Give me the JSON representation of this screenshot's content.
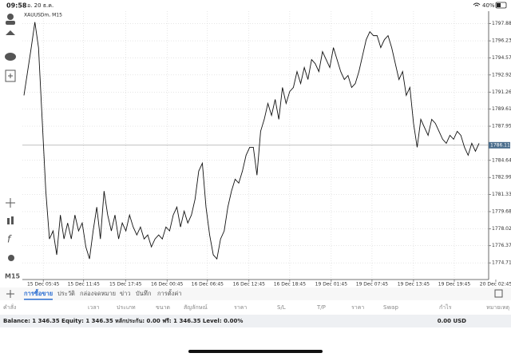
{
  "status": {
    "time": "09:58",
    "date": "อ. 20 ธ.ค.",
    "battery": "40%"
  },
  "toolbar": {
    "timeframe": "M15"
  },
  "chart_data": {
    "type": "line",
    "title": "XAUUSDm, M15",
    "color": "#111111",
    "ylim": [
      1773.1,
      1799.1
    ],
    "xlim": [
      0,
      125
    ],
    "yticks": [
      1797.885,
      {
        "value": 1796.23,
        "label": "1796.230"
      },
      1794.575,
      {
        "value": 1792.92,
        "label": "1792.920"
      },
      1791.265,
      {
        "value": 1789.61,
        "label": "1789.610"
      },
      1787.955,
      1784.645,
      {
        "value": 1782.99,
        "label": "1782.990"
      },
      1781.335,
      {
        "value": 1779.68,
        "label": "1779.680"
      },
      1778.025,
      {
        "value": 1776.37,
        "label": "1776.370"
      },
      1774.715
    ],
    "xticks": [
      {
        "value": 5.3,
        "label": "15 Dec 05:45"
      },
      {
        "value": 16.4,
        "label": "15 Dec 11:45"
      },
      {
        "value": 27.9,
        "label": "15 Dec 17:45"
      },
      {
        "value": 39.3,
        "label": "16 Dec 00:45"
      },
      {
        "value": 50.4,
        "label": "16 Dec 06:45"
      },
      {
        "value": 61.8,
        "label": "16 Dec 12:45"
      },
      {
        "value": 73,
        "label": "16 Dec 18:45"
      },
      {
        "value": 84.4,
        "label": "19 Dec 01:45"
      },
      {
        "value": 95.6,
        "label": "19 Dec 07:45"
      },
      {
        "value": 107,
        "label": "19 Dec 13:45"
      },
      {
        "value": 118.2,
        "label": "19 Dec 19:45"
      },
      {
        "value": 129.6,
        "label": "20 Dec 02:45"
      }
    ],
    "current_price": 1786.111,
    "grid": true,
    "values": [
      1790.94,
      1793.25,
      1795.57,
      1798.04,
      1795.57,
      1788.62,
      1781.67,
      1777.03,
      1777.81,
      1775.49,
      1779.35,
      1777.03,
      1778.58,
      1777.03,
      1779.35,
      1777.81,
      1778.58,
      1776.26,
      1775.1,
      1777.81,
      1780.12,
      1777.03,
      1781.67,
      1779.35,
      1777.81,
      1779.35,
      1777.03,
      1778.58,
      1777.81,
      1779.35,
      1778.19,
      1777.42,
      1778.19,
      1777.03,
      1777.42,
      1776.26,
      1777.03,
      1777.42,
      1777.03,
      1778.19,
      1777.81,
      1779.35,
      1780.12,
      1778.19,
      1779.73,
      1778.58,
      1779.35,
      1780.89,
      1783.6,
      1784.37,
      1780.12,
      1777.42,
      1775.49,
      1775.1,
      1777.03,
      1777.81,
      1780.12,
      1781.67,
      1782.82,
      1782.44,
      1783.6,
      1785.14,
      1785.91,
      1785.91,
      1783.21,
      1787.46,
      1788.62,
      1790.16,
      1789.0,
      1790.55,
      1788.62,
      1791.71,
      1790.16,
      1791.32,
      1791.71,
      1793.25,
      1792.09,
      1793.64,
      1792.48,
      1794.41,
      1794.02,
      1793.25,
      1795.18,
      1794.41,
      1793.64,
      1795.57,
      1794.41,
      1793.25,
      1792.48,
      1792.87,
      1791.71,
      1792.09,
      1793.25,
      1794.8,
      1796.34,
      1797.11,
      1796.73,
      1796.73,
      1795.57,
      1796.34,
      1796.73,
      1795.57,
      1794.02,
      1792.48,
      1793.25,
      1790.94,
      1791.71,
      1788.23,
      1785.91,
      1788.62,
      1787.84,
      1787.07,
      1788.62,
      1788.23,
      1787.46,
      1786.69,
      1786.3,
      1787.07,
      1786.69,
      1787.46,
      1787.07,
      1785.91,
      1785.14,
      1786.3,
      1785.53,
      1786.3
    ]
  },
  "tabs": [
    "การซื้อขาย",
    "ประวัติ",
    "กล่องจดหมาย",
    "ข่าว",
    "บันทึก",
    "การตั้งค่า"
  ],
  "columns": [
    "คำสั่ง",
    "เวลา",
    "ประเภท",
    "ขนาด",
    "สัญลักษณ์",
    "ราคา",
    "S/L",
    "T/P",
    "ราคา",
    "Swap",
    "กำไร",
    "หมายเหตุ"
  ],
  "balance": {
    "text": "Balance: 1 346.35 Equity: 1 346.35 หลักประกัน: 0.00 ฟรี: 1 346.35 Level: 0.00%",
    "total": "0.00 USD"
  }
}
